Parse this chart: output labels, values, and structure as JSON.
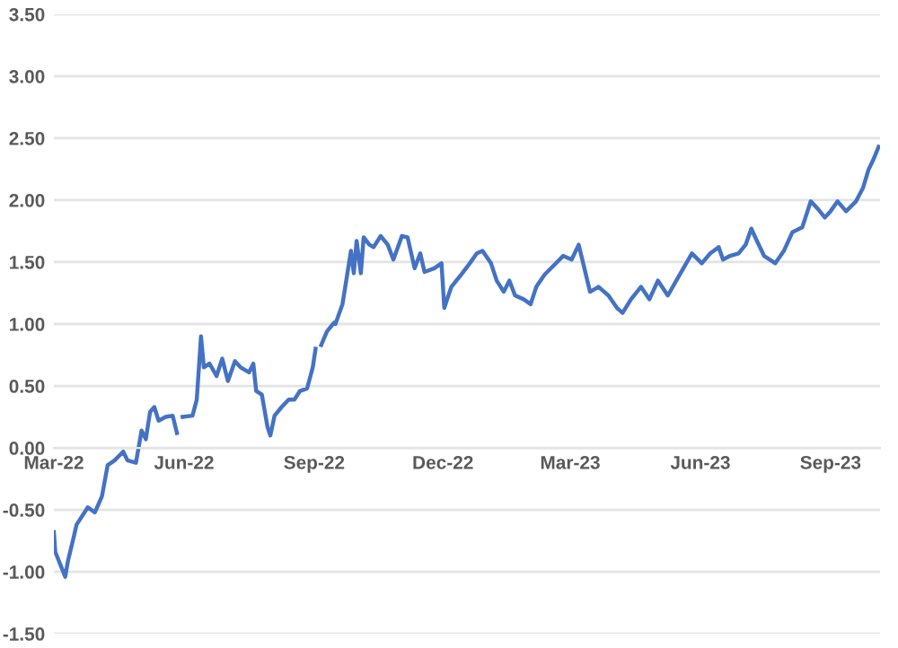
{
  "chart_data": {
    "type": "line",
    "x": [
      "2022-03-01",
      "2022-03-02",
      "2022-03-09",
      "2022-03-11",
      "2022-03-15",
      "2022-03-17",
      "2022-03-25",
      "2022-03-30",
      "2022-04-04",
      "2022-04-08",
      "2022-04-13",
      "2022-04-19",
      "2022-04-22",
      "2022-04-28",
      "2022-05-02",
      "2022-05-05",
      "2022-05-08",
      "2022-05-11",
      "2022-05-14",
      "2022-05-19",
      "2022-05-24",
      "2022-05-27",
      "2022-05-29",
      "2022-05-31",
      "2022-06-07",
      "2022-06-10",
      "2022-06-13",
      "2022-06-15",
      "2022-06-19",
      "2022-06-24",
      "2022-06-28",
      "2022-07-02",
      "2022-07-07",
      "2022-07-11",
      "2022-07-17",
      "2022-07-20",
      "2022-07-22",
      "2022-07-26",
      "2022-07-30",
      "2022-08-01",
      "2022-08-04",
      "2022-08-09",
      "2022-08-14",
      "2022-08-18",
      "2022-08-22",
      "2022-08-27",
      "2022-08-31",
      "2022-09-02",
      "2022-09-04",
      "2022-09-06",
      "2022-09-10",
      "2022-09-15",
      "2022-09-16",
      "2022-09-21",
      "2022-09-27",
      "2022-09-29",
      "2022-10-01",
      "2022-10-04",
      "2022-10-06",
      "2022-10-10",
      "2022-10-13",
      "2022-10-18",
      "2022-10-23",
      "2022-10-27",
      "2022-11-02",
      "2022-11-06",
      "2022-11-11",
      "2022-11-15",
      "2022-11-18",
      "2022-11-25",
      "2022-11-30",
      "2022-12-02",
      "2022-12-04",
      "2022-12-07",
      "2022-12-14",
      "2022-12-20",
      "2022-12-25",
      "2022-12-29",
      "2023-01-04",
      "2023-01-08",
      "2023-01-13",
      "2023-01-17",
      "2023-01-21",
      "2023-01-27",
      "2023-02-01",
      "2023-02-05",
      "2023-02-11",
      "2023-02-18",
      "2023-02-24",
      "2023-03-02",
      "2023-03-07",
      "2023-03-11",
      "2023-03-15",
      "2023-03-21",
      "2023-03-28",
      "2023-04-03",
      "2023-04-07",
      "2023-04-13",
      "2023-04-20",
      "2023-04-26",
      "2023-05-02",
      "2023-05-09",
      "2023-05-15",
      "2023-05-20",
      "2023-05-26",
      "2023-06-02",
      "2023-06-08",
      "2023-06-14",
      "2023-06-17",
      "2023-06-22",
      "2023-06-28",
      "2023-07-03",
      "2023-07-07",
      "2023-07-11",
      "2023-07-16",
      "2023-07-24",
      "2023-07-30",
      "2023-08-05",
      "2023-08-12",
      "2023-08-18",
      "2023-08-23",
      "2023-08-28",
      "2023-09-01",
      "2023-09-06",
      "2023-09-12",
      "2023-09-19",
      "2023-09-24",
      "2023-09-28",
      "2023-10-01",
      "2023-10-05"
    ],
    "series": [
      {
        "color": "#4472c4",
        "values": [
          -0.68,
          -0.84,
          -1.04,
          -0.91,
          -0.72,
          -0.62,
          -0.48,
          -0.52,
          -0.39,
          -0.14,
          -0.1,
          -0.03,
          -0.1,
          -0.12,
          0.14,
          0.07,
          0.29,
          0.33,
          0.22,
          0.25,
          0.26,
          0.12,
          null,
          0.25,
          0.26,
          0.39,
          0.9,
          0.65,
          0.68,
          0.58,
          0.72,
          0.54,
          0.7,
          0.65,
          0.61,
          0.68,
          0.46,
          0.43,
          0.17,
          0.1,
          0.26,
          0.33,
          0.39,
          0.39,
          0.46,
          0.48,
          0.65,
          0.8,
          null,
          0.83,
          0.94,
          1.01,
          1.0,
          1.16,
          1.59,
          1.41,
          1.67,
          1.41,
          1.7,
          1.64,
          1.62,
          1.71,
          1.64,
          1.52,
          1.71,
          1.7,
          1.45,
          1.57,
          1.42,
          1.45,
          1.49,
          1.13,
          1.2,
          1.3,
          1.4,
          1.49,
          1.57,
          1.59,
          1.49,
          1.35,
          1.26,
          1.35,
          1.23,
          1.2,
          1.16,
          1.3,
          1.4,
          1.48,
          1.55,
          1.52,
          1.64,
          1.45,
          1.26,
          1.3,
          1.23,
          1.13,
          1.09,
          1.2,
          1.3,
          1.2,
          1.35,
          1.23,
          1.35,
          1.45,
          1.57,
          1.49,
          1.57,
          1.62,
          1.52,
          1.55,
          1.57,
          1.64,
          1.77,
          1.67,
          1.55,
          1.49,
          1.59,
          1.74,
          1.78,
          1.99,
          1.93,
          1.86,
          1.91,
          1.99,
          1.91,
          1.99,
          2.1,
          2.25,
          2.32,
          2.43
        ]
      }
    ],
    "xlim": [
      "2022-03-01",
      "2023-10-06"
    ],
    "xticks": [
      {
        "value": "2022-03-01",
        "label": "Mar-22"
      },
      {
        "value": "2022-06-01",
        "label": "Jun-22"
      },
      {
        "value": "2022-09-01",
        "label": "Sep-22"
      },
      {
        "value": "2022-12-01",
        "label": "Dec-22"
      },
      {
        "value": "2023-03-01",
        "label": "Mar-23"
      },
      {
        "value": "2023-06-01",
        "label": "Jun-23"
      },
      {
        "value": "2023-09-01",
        "label": "Sep-23"
      }
    ],
    "ylim": [
      -1.5,
      3.5
    ],
    "yticks": [
      {
        "value": -1.5,
        "label": "-1.50"
      },
      {
        "value": -1,
        "label": "-1.00"
      },
      {
        "value": -0.5,
        "label": "-0.50"
      },
      {
        "value": 0,
        "label": "0.00"
      },
      {
        "value": 0.5,
        "label": "0.50"
      },
      {
        "value": 1,
        "label": "1.00"
      },
      {
        "value": 1.5,
        "label": "1.50"
      },
      {
        "value": 2,
        "label": "2.00"
      },
      {
        "value": 2.5,
        "label": "2.50"
      },
      {
        "value": 3,
        "label": "3.00"
      },
      {
        "value": 3.5,
        "label": "3.50"
      }
    ],
    "grid": "y",
    "marker": "none",
    "line_style": "solid"
  }
}
